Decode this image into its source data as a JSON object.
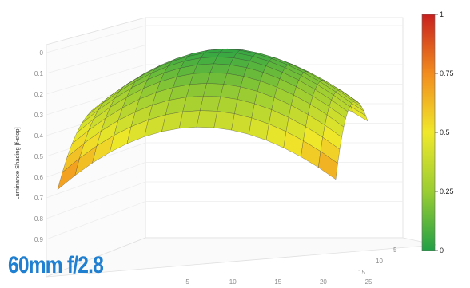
{
  "chart_data": {
    "type": "surface",
    "title": "",
    "zlabel": "Luminance Shading [f-stop]",
    "z_ticks": [
      "0",
      "0.1",
      "0.2",
      "0.3",
      "0.4",
      "0.5",
      "0.6",
      "0.7",
      "0.8",
      "0.9"
    ],
    "z_inverted": true,
    "zlim": [
      0,
      1
    ],
    "x_ticks": [
      "5",
      "10",
      "15",
      "20",
      "25"
    ],
    "y_ticks": [
      "5",
      "10",
      "15"
    ],
    "grid": true,
    "surface": {
      "shape": "dome",
      "peak_value": 0.0,
      "center_value": 0.03,
      "edge_midpoint_values": [
        0.35,
        0.4
      ],
      "corner_values": [
        0.78,
        0.72,
        0.55,
        0.52
      ]
    },
    "colorbar": {
      "ticks": [
        "0",
        "0.25",
        "0.5",
        "0.75",
        "1"
      ],
      "colors": [
        "#22a046",
        "#9acd32",
        "#f0e82a",
        "#f28c1e",
        "#c8201e"
      ]
    },
    "caption": "60mm f/2.8"
  }
}
